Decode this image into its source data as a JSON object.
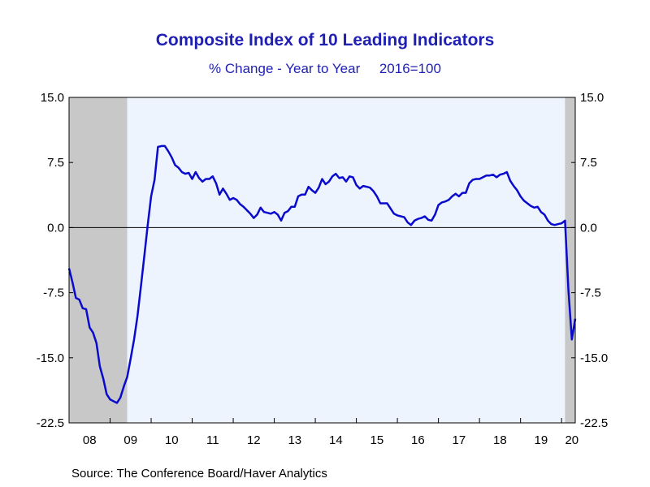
{
  "title": "Composite Index of 10 Leading Indicators",
  "subtitle": "% Change - Year to Year     2016=100",
  "source": "Source:  The Conference Board/Haver Analytics",
  "colors": {
    "line": "#0a0acc",
    "plot_bg": "#eef4fe",
    "recession": "#c8c8c8",
    "text": "#1f1fb4"
  },
  "chart_data": {
    "type": "line",
    "title": "Composite Index of 10 Leading Indicators",
    "subtitle": "% Change - Year to Year     2016=100",
    "xlabel": "",
    "ylabel": "",
    "xlim": [
      "2008-01",
      "2020-05"
    ],
    "ylim": [
      -22.5,
      15.0
    ],
    "yticks": [
      "15.0",
      "7.5",
      "0.0",
      "-7.5",
      "-15.0",
      "-22.5"
    ],
    "xticks": [
      "08",
      "09",
      "10",
      "11",
      "12",
      "13",
      "14",
      "15",
      "16",
      "17",
      "18",
      "19",
      "20"
    ],
    "grid": false,
    "zero_line": true,
    "recessions": [
      [
        "2008-01",
        "2009-06"
      ],
      [
        "2020-02",
        "2020-05"
      ]
    ],
    "series": [
      {
        "x": [
          "2008-01",
          "2008-02",
          "2008-03",
          "2008-04",
          "2008-05",
          "2008-06",
          "2008-07",
          "2008-08",
          "2008-09",
          "2008-10",
          "2008-11",
          "2008-12",
          "2009-01",
          "2009-02",
          "2009-03",
          "2009-04",
          "2009-05",
          "2009-06",
          "2009-07",
          "2009-08",
          "2009-09",
          "2009-10",
          "2009-11",
          "2009-12",
          "2010-01",
          "2010-02",
          "2010-03",
          "2010-04",
          "2010-05",
          "2010-06",
          "2010-07",
          "2010-08",
          "2010-09",
          "2010-10",
          "2010-11",
          "2010-12",
          "2011-01",
          "2011-02",
          "2011-03",
          "2011-04",
          "2011-05",
          "2011-06",
          "2011-07",
          "2011-08",
          "2011-09",
          "2011-10",
          "2011-11",
          "2011-12",
          "2012-01",
          "2012-02",
          "2012-03",
          "2012-04",
          "2012-05",
          "2012-06",
          "2012-07",
          "2012-08",
          "2012-09",
          "2012-10",
          "2012-11",
          "2012-12",
          "2013-01",
          "2013-02",
          "2013-03",
          "2013-04",
          "2013-05",
          "2013-06",
          "2013-07",
          "2013-08",
          "2013-09",
          "2013-10",
          "2013-11",
          "2013-12",
          "2014-01",
          "2014-02",
          "2014-03",
          "2014-04",
          "2014-05",
          "2014-06",
          "2014-07",
          "2014-08",
          "2014-09",
          "2014-10",
          "2014-11",
          "2014-12",
          "2015-01",
          "2015-02",
          "2015-03",
          "2015-04",
          "2015-05",
          "2015-06",
          "2015-07",
          "2015-08",
          "2015-09",
          "2015-10",
          "2015-11",
          "2015-12",
          "2016-01",
          "2016-02",
          "2016-03",
          "2016-04",
          "2016-05",
          "2016-06",
          "2016-07",
          "2016-08",
          "2016-09",
          "2016-10",
          "2016-11",
          "2016-12",
          "2017-01",
          "2017-02",
          "2017-03",
          "2017-04",
          "2017-05",
          "2017-06",
          "2017-07",
          "2017-08",
          "2017-09",
          "2017-10",
          "2017-11",
          "2017-12",
          "2018-01",
          "2018-02",
          "2018-03",
          "2018-04",
          "2018-05",
          "2018-06",
          "2018-07",
          "2018-08",
          "2018-09",
          "2018-10",
          "2018-11",
          "2018-12",
          "2019-01",
          "2019-02",
          "2019-03",
          "2019-04",
          "2019-05",
          "2019-06",
          "2019-07",
          "2019-08",
          "2019-09",
          "2019-10",
          "2019-11",
          "2019-12",
          "2020-01",
          "2020-02",
          "2020-03",
          "2020-04",
          "2020-05"
        ],
        "values": [
          -4.7,
          -6.3,
          -8.1,
          -8.3,
          -9.3,
          -9.4,
          -11.5,
          -12.1,
          -13.3,
          -16.0,
          -17.4,
          -19.2,
          -19.8,
          -20.0,
          -20.2,
          -19.6,
          -18.3,
          -17.2,
          -15.1,
          -12.9,
          -10.2,
          -6.8,
          -3.3,
          0.3,
          3.6,
          5.5,
          9.3,
          9.4,
          9.4,
          8.8,
          8.1,
          7.2,
          6.9,
          6.4,
          6.2,
          6.3,
          5.6,
          6.4,
          5.7,
          5.3,
          5.6,
          5.6,
          5.9,
          5.1,
          3.8,
          4.5,
          3.9,
          3.2,
          3.4,
          3.2,
          2.7,
          2.4,
          2.0,
          1.6,
          1.1,
          1.5,
          2.3,
          1.8,
          1.7,
          1.6,
          1.8,
          1.5,
          0.8,
          1.7,
          1.9,
          2.4,
          2.4,
          3.6,
          3.8,
          3.8,
          4.7,
          4.3,
          4.0,
          4.6,
          5.6,
          5.0,
          5.3,
          5.9,
          6.2,
          5.7,
          5.8,
          5.3,
          5.9,
          5.8,
          4.9,
          4.5,
          4.8,
          4.7,
          4.6,
          4.2,
          3.6,
          2.8,
          2.8,
          2.8,
          2.2,
          1.6,
          1.4,
          1.3,
          1.2,
          0.6,
          0.3,
          0.8,
          1.0,
          1.1,
          1.3,
          0.9,
          0.8,
          1.5,
          2.6,
          2.9,
          3.0,
          3.2,
          3.6,
          3.9,
          3.6,
          4.0,
          4.0,
          5.1,
          5.5,
          5.6,
          5.6,
          5.8,
          6.0,
          6.0,
          6.1,
          5.8,
          6.1,
          6.2,
          6.4,
          5.4,
          4.8,
          4.3,
          3.6,
          3.1,
          2.8,
          2.5,
          2.3,
          2.4,
          1.8,
          1.5,
          0.8,
          0.4,
          0.3,
          0.4,
          0.5,
          0.8,
          -7.2,
          -12.9,
          -10.5
        ]
      }
    ]
  }
}
